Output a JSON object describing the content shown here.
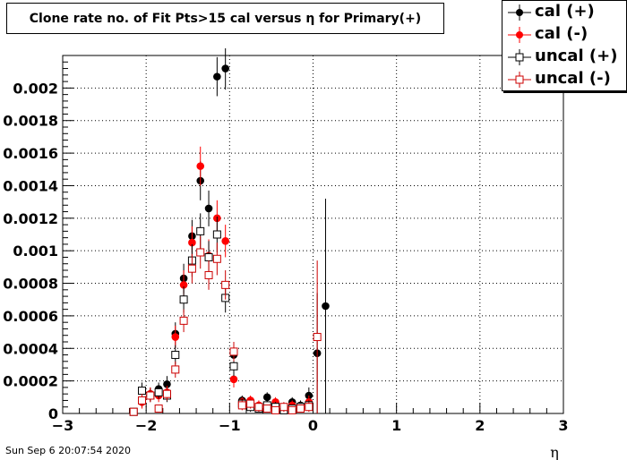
{
  "chart_data": {
    "type": "scatter",
    "title": "Clone rate no. of Fit Pts>15 cal versus η for Primary(+)",
    "xlabel": "η",
    "ylabel": "",
    "xlim": [
      -3,
      3
    ],
    "ylim": [
      0,
      0.0022
    ],
    "x_ticks": [
      -3,
      -2,
      -1,
      0,
      1,
      2,
      3
    ],
    "x_tick_labels": [
      "−3",
      "−2",
      "−1",
      "0",
      "1",
      "2",
      "3"
    ],
    "y_ticks": [
      0,
      0.0002,
      0.0004,
      0.0006,
      0.0008,
      0.001,
      0.0012,
      0.0014,
      0.0016,
      0.0018,
      0.002
    ],
    "y_tick_labels": [
      "0",
      "0.0002",
      "0.0004",
      "0.0006",
      "0.0008",
      "0.001",
      "0.0012",
      "0.0014",
      "0.0016",
      "0.0018",
      "0.002"
    ],
    "grid": true,
    "legend_position": "top-right",
    "series": [
      {
        "name": "cal (+)",
        "color": "#000000",
        "marker": "filled-circle",
        "points": [
          {
            "x": -2.15,
            "y": 1e-05,
            "err": 1e-05
          },
          {
            "x": -2.05,
            "y": 8e-05,
            "err": 4e-05
          },
          {
            "x": -1.95,
            "y": 0.00012,
            "err": 4e-05
          },
          {
            "x": -1.85,
            "y": 0.00015,
            "err": 4e-05
          },
          {
            "x": -1.75,
            "y": 0.00018,
            "err": 5e-05
          },
          {
            "x": -1.65,
            "y": 0.00049,
            "err": 7e-05
          },
          {
            "x": -1.55,
            "y": 0.00083,
            "err": 9e-05
          },
          {
            "x": -1.45,
            "y": 0.00109,
            "err": 0.0001
          },
          {
            "x": -1.35,
            "y": 0.00143,
            "err": 0.00012
          },
          {
            "x": -1.25,
            "y": 0.00126,
            "err": 0.00011
          },
          {
            "x": -1.15,
            "y": 0.00207,
            "err": 0.00012
          },
          {
            "x": -1.05,
            "y": 0.00212,
            "err": 0.00013
          },
          {
            "x": -0.95,
            "y": 0.00036,
            "err": 6e-05
          },
          {
            "x": -0.85,
            "y": 8e-05,
            "err": 3e-05
          },
          {
            "x": -0.75,
            "y": 6e-05,
            "err": 3e-05
          },
          {
            "x": -0.65,
            "y": 4e-05,
            "err": 3e-05
          },
          {
            "x": -0.55,
            "y": 0.0001,
            "err": 3e-05
          },
          {
            "x": -0.45,
            "y": 5e-05,
            "err": 3e-05
          },
          {
            "x": -0.35,
            "y": 3e-05,
            "err": 2e-05
          },
          {
            "x": -0.25,
            "y": 7e-05,
            "err": 3e-05
          },
          {
            "x": -0.15,
            "y": 5e-05,
            "err": 3e-05
          },
          {
            "x": -0.05,
            "y": 0.00011,
            "err": 5e-05
          },
          {
            "x": 0.05,
            "y": 0.00037,
            "err": 0.00037
          },
          {
            "x": 0.15,
            "y": 0.00066,
            "err": 0.00066
          }
        ]
      },
      {
        "name": "cal (-)",
        "color": "#ff0000",
        "marker": "filled-circle",
        "points": [
          {
            "x": -2.15,
            "y": 1e-05,
            "err": 1e-05
          },
          {
            "x": -2.05,
            "y": 7e-05,
            "err": 4e-05
          },
          {
            "x": -1.95,
            "y": 0.00012,
            "err": 4e-05
          },
          {
            "x": -1.85,
            "y": 0.00011,
            "err": 4e-05
          },
          {
            "x": -1.75,
            "y": 0.00013,
            "err": 4e-05
          },
          {
            "x": -1.65,
            "y": 0.00047,
            "err": 7e-05
          },
          {
            "x": -1.55,
            "y": 0.00079,
            "err": 9e-05
          },
          {
            "x": -1.45,
            "y": 0.00105,
            "err": 0.0001
          },
          {
            "x": -1.35,
            "y": 0.00152,
            "err": 0.00012
          },
          {
            "x": -1.25,
            "y": 0.00097,
            "err": 0.0001
          },
          {
            "x": -1.15,
            "y": 0.0012,
            "err": 0.00011
          },
          {
            "x": -1.05,
            "y": 0.00106,
            "err": 0.0001
          },
          {
            "x": -0.95,
            "y": 0.00021,
            "err": 5e-05
          },
          {
            "x": -0.85,
            "y": 7e-05,
            "err": 3e-05
          },
          {
            "x": -0.75,
            "y": 8e-05,
            "err": 3e-05
          },
          {
            "x": -0.65,
            "y": 5e-05,
            "err": 3e-05
          },
          {
            "x": -0.55,
            "y": 4e-05,
            "err": 3e-05
          },
          {
            "x": -0.45,
            "y": 7e-05,
            "err": 3e-05
          },
          {
            "x": -0.35,
            "y": 3e-05,
            "err": 2e-05
          },
          {
            "x": -0.25,
            "y": 5e-05,
            "err": 3e-05
          },
          {
            "x": -0.15,
            "y": 4e-05,
            "err": 3e-05
          },
          {
            "x": -0.05,
            "y": 7e-05,
            "err": 4e-05
          }
        ]
      },
      {
        "name": "uncal (+)",
        "color": "#000000",
        "marker": "open-square",
        "points": [
          {
            "x": -2.15,
            "y": 1e-05,
            "err": 1e-05
          },
          {
            "x": -2.05,
            "y": 0.00014,
            "err": 5e-05
          },
          {
            "x": -1.95,
            "y": 0.00011,
            "err": 4e-05
          },
          {
            "x": -1.85,
            "y": 0.00013,
            "err": 4e-05
          },
          {
            "x": -1.75,
            "y": 0.00011,
            "err": 4e-05
          },
          {
            "x": -1.65,
            "y": 0.00036,
            "err": 6e-05
          },
          {
            "x": -1.55,
            "y": 0.0007,
            "err": 8e-05
          },
          {
            "x": -1.45,
            "y": 0.00094,
            "err": 0.0001
          },
          {
            "x": -1.35,
            "y": 0.00112,
            "err": 0.00011
          },
          {
            "x": -1.25,
            "y": 0.00096,
            "err": 0.0001
          },
          {
            "x": -1.15,
            "y": 0.0011,
            "err": 0.00011
          },
          {
            "x": -1.05,
            "y": 0.00071,
            "err": 9e-05
          },
          {
            "x": -0.95,
            "y": 0.00029,
            "err": 6e-05
          },
          {
            "x": -0.85,
            "y": 6e-05,
            "err": 3e-05
          },
          {
            "x": -0.75,
            "y": 4e-05,
            "err": 3e-05
          },
          {
            "x": -0.65,
            "y": 3e-05,
            "err": 2e-05
          },
          {
            "x": -0.55,
            "y": 5e-05,
            "err": 3e-05
          },
          {
            "x": -0.45,
            "y": 4e-05,
            "err": 3e-05
          },
          {
            "x": -0.35,
            "y": 2e-05,
            "err": 2e-05
          },
          {
            "x": -0.25,
            "y": 3e-05,
            "err": 2e-05
          },
          {
            "x": -0.15,
            "y": 4e-05,
            "err": 3e-05
          },
          {
            "x": -0.05,
            "y": 5e-05,
            "err": 3e-05
          }
        ]
      },
      {
        "name": "uncal (-)",
        "color": "#cc0000",
        "marker": "open-square",
        "points": [
          {
            "x": -2.15,
            "y": 1e-05,
            "err": 1e-05
          },
          {
            "x": -2.05,
            "y": 8e-05,
            "err": 4e-05
          },
          {
            "x": -1.95,
            "y": 0.00011,
            "err": 4e-05
          },
          {
            "x": -1.85,
            "y": 3e-05,
            "err": 2e-05
          },
          {
            "x": -1.75,
            "y": 0.00012,
            "err": 4e-05
          },
          {
            "x": -1.65,
            "y": 0.00027,
            "err": 5e-05
          },
          {
            "x": -1.55,
            "y": 0.00057,
            "err": 7e-05
          },
          {
            "x": -1.45,
            "y": 0.00089,
            "err": 9e-05
          },
          {
            "x": -1.35,
            "y": 0.00099,
            "err": 0.0001
          },
          {
            "x": -1.25,
            "y": 0.00085,
            "err": 9e-05
          },
          {
            "x": -1.15,
            "y": 0.00095,
            "err": 0.0001
          },
          {
            "x": -1.05,
            "y": 0.00079,
            "err": 9e-05
          },
          {
            "x": -0.95,
            "y": 0.00038,
            "err": 6e-05
          },
          {
            "x": -0.85,
            "y": 5e-05,
            "err": 3e-05
          },
          {
            "x": -0.75,
            "y": 6e-05,
            "err": 3e-05
          },
          {
            "x": -0.65,
            "y": 4e-05,
            "err": 3e-05
          },
          {
            "x": -0.55,
            "y": 3e-05,
            "err": 2e-05
          },
          {
            "x": -0.45,
            "y": 2e-05,
            "err": 2e-05
          },
          {
            "x": -0.35,
            "y": 4e-05,
            "err": 3e-05
          },
          {
            "x": -0.25,
            "y": 2e-05,
            "err": 2e-05
          },
          {
            "x": -0.15,
            "y": 3e-05,
            "err": 2e-05
          },
          {
            "x": -0.05,
            "y": 4e-05,
            "err": 3e-05
          },
          {
            "x": 0.05,
            "y": 0.00047,
            "err": 0.00047
          }
        ]
      }
    ]
  },
  "footer": {
    "date": "Sun Sep  6 20:07:54 2020"
  }
}
